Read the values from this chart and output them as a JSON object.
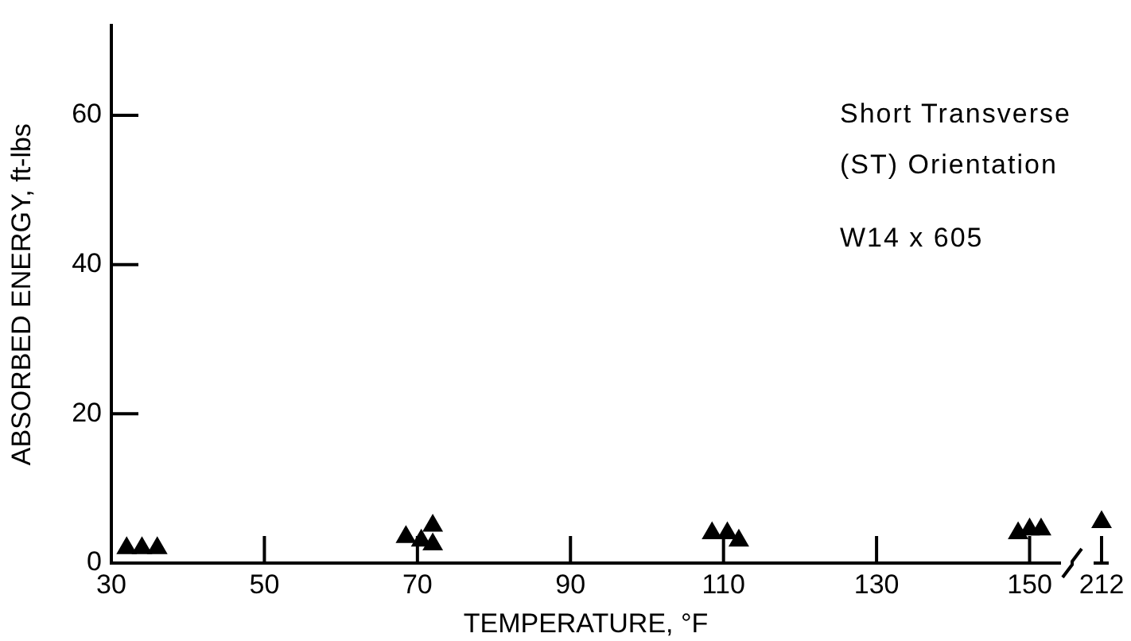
{
  "chart_data": [
    {
      "type": "scatter",
      "xlabel": "TEMPERATURE, °F",
      "ylabel": "ABSORBED ENERGY, ft-lbs",
      "annotations": [
        "Short Transverse (ST) Orientation",
        "W14 x 605"
      ],
      "x": [
        32,
        34,
        36,
        68.5,
        70.5,
        72,
        72,
        108.5,
        110.5,
        112,
        148.5,
        150,
        151.5
      ],
      "values": [
        2,
        2,
        2,
        3.5,
        3,
        5,
        2.5,
        4,
        4,
        3,
        4,
        4.5,
        4.5
      ],
      "color": "#000000",
      "marker": "triangle",
      "xlim": [
        30,
        154
      ],
      "xticks": [
        30,
        50,
        70,
        90,
        110,
        130,
        150
      ],
      "ylim": [
        0,
        72
      ],
      "yticks": [
        0,
        20,
        40,
        60
      ]
    },
    {
      "type": "scatter",
      "categories": [
        "212"
      ],
      "values": [
        5.5
      ],
      "color": "#000000",
      "marker": "triangle",
      "ylim": [
        0,
        60
      ],
      "yticks": [
        0,
        20,
        40,
        60
      ],
      "tick_labels": "x"
    }
  ]
}
